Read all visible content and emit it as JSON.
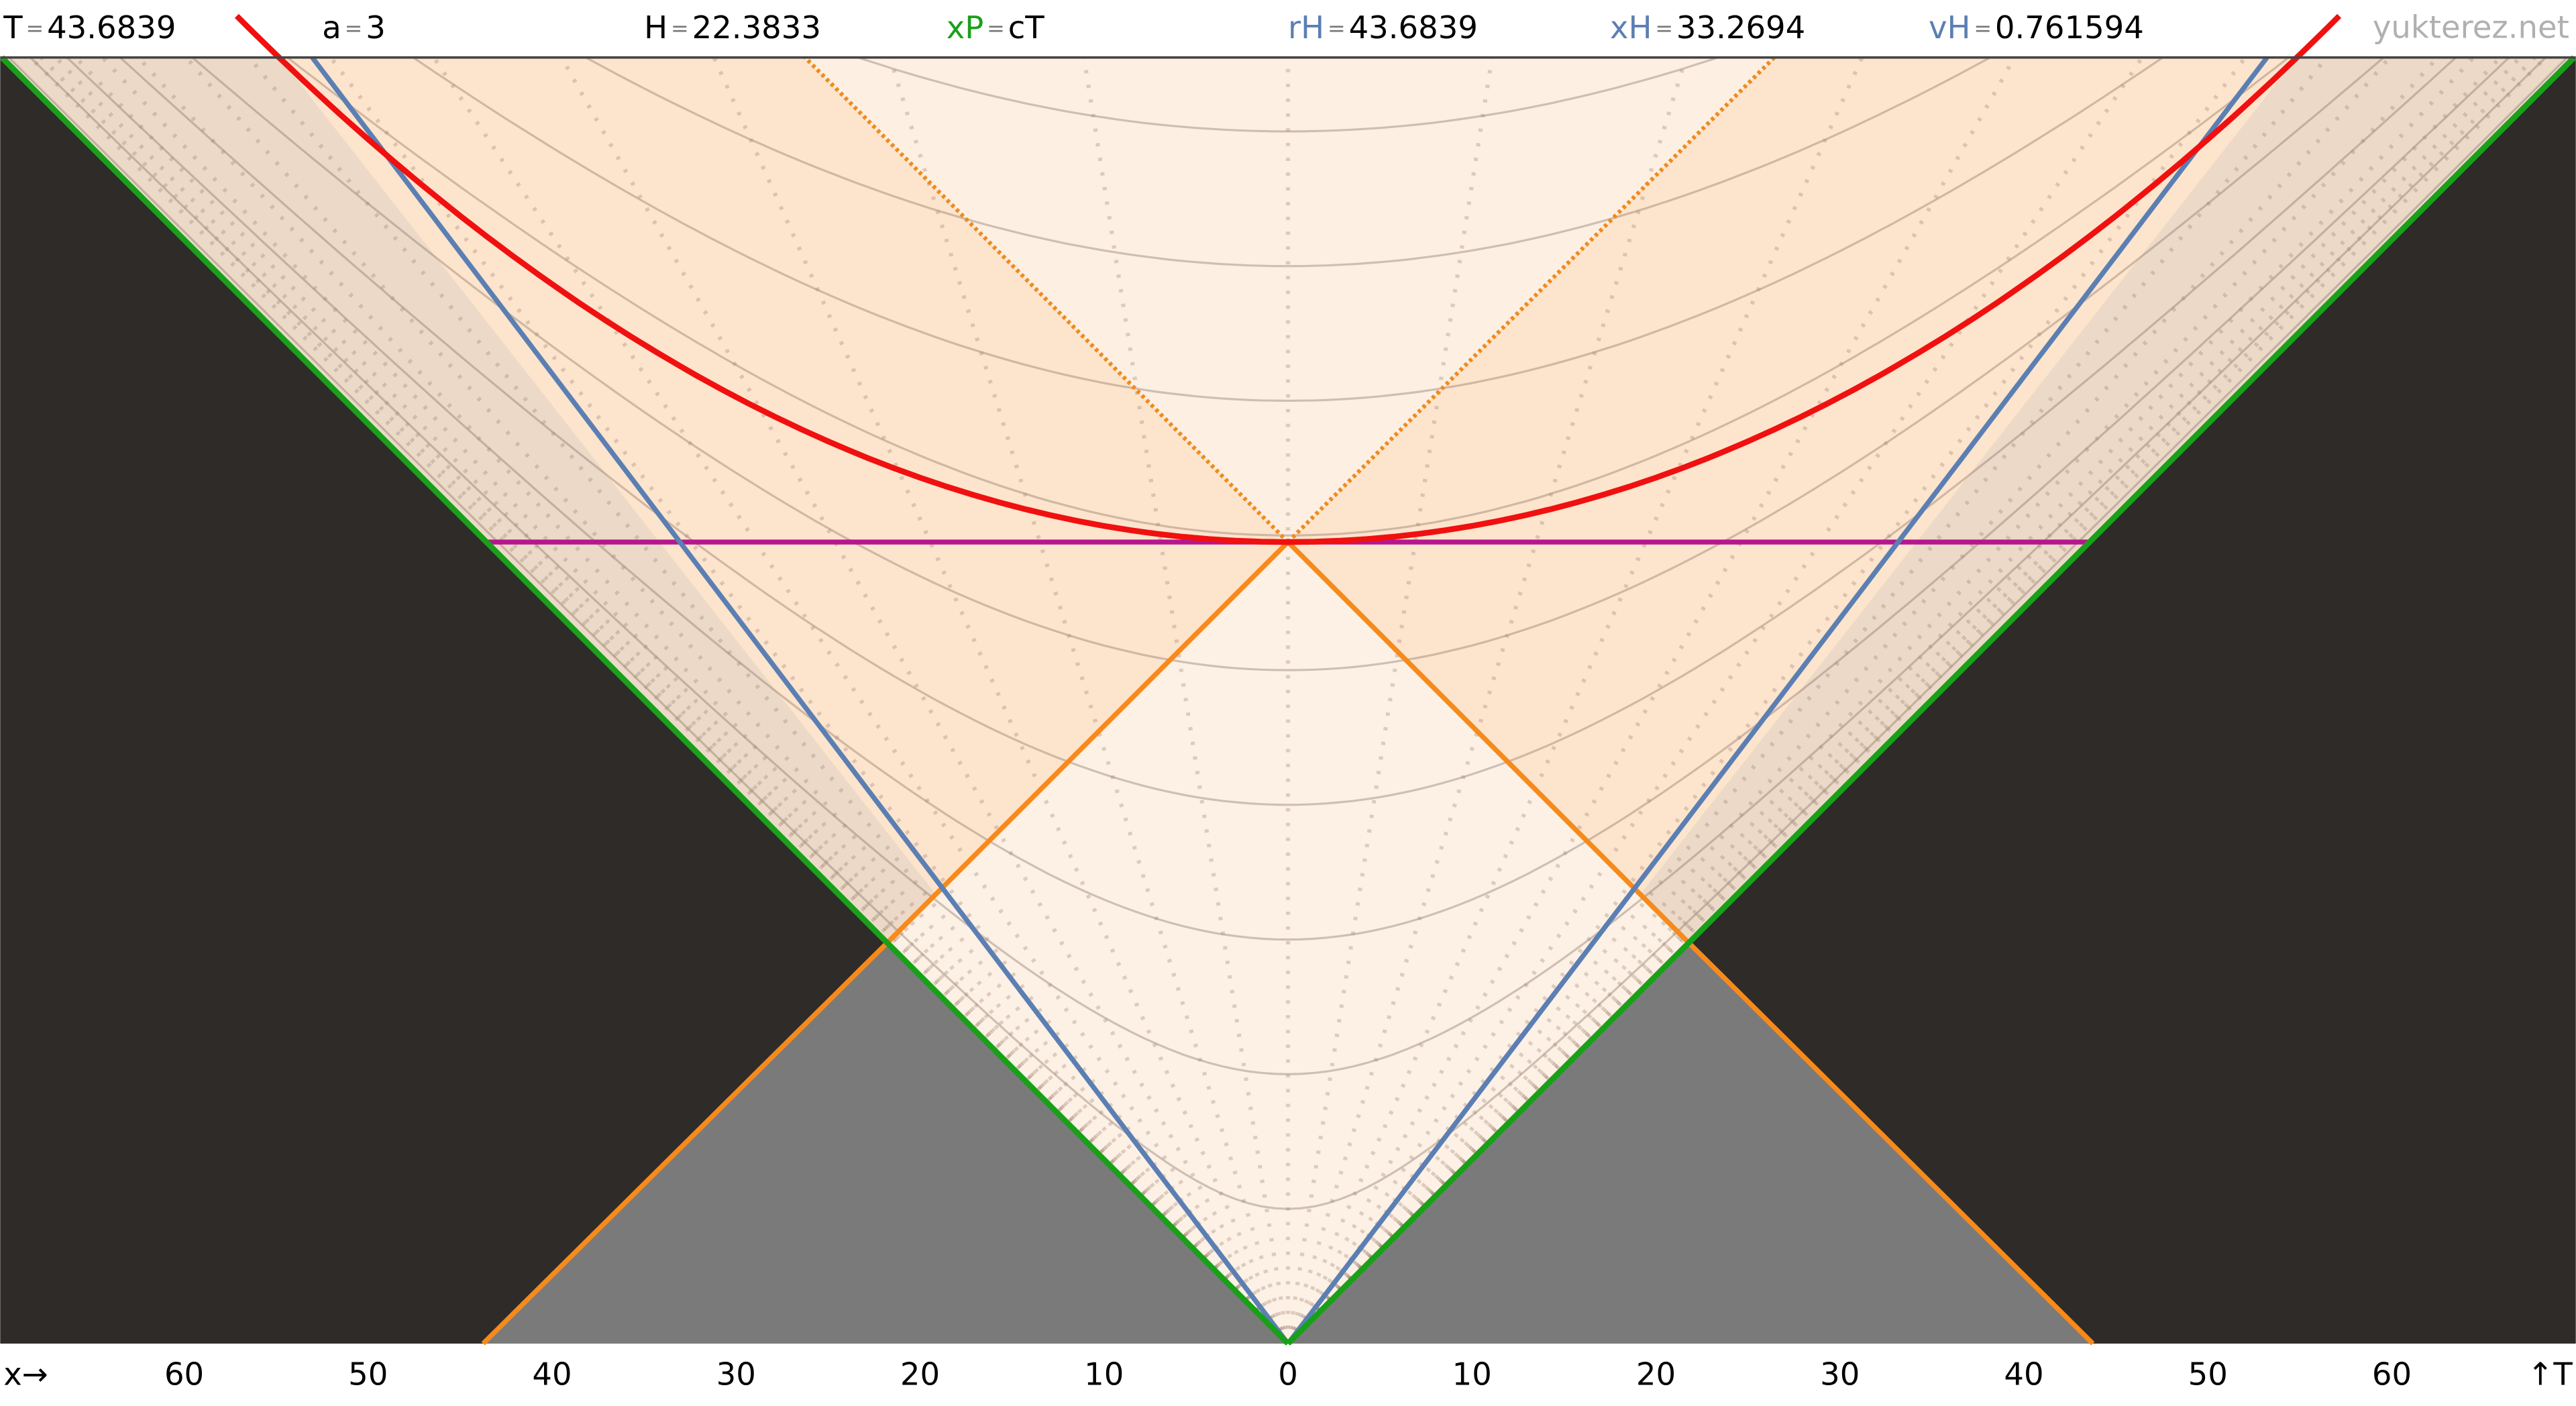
{
  "chart_data": {
    "type": "spacetime",
    "header": [
      {
        "label": "T",
        "value": 43.6839,
        "color": "#000000"
      },
      {
        "label": "a",
        "value": 3,
        "color": "#000000"
      },
      {
        "label": "H",
        "value": 22.3833,
        "color": "#000000"
      },
      {
        "label": "xP",
        "value": "cT",
        "color": "#1aa01a"
      },
      {
        "label": "rH",
        "value": 43.6839,
        "color": "#5b7fb3"
      },
      {
        "label": "xH",
        "value": 33.2694,
        "color": "#5b7fb3"
      },
      {
        "label": "vH",
        "value": 0.761594,
        "color": "#5b7fb3"
      }
    ],
    "header_separator": "=",
    "watermark": "yukterez.net",
    "x_label": "x→",
    "y_label": "↑T",
    "xlim": [
      -70,
      70
    ],
    "xticks": [
      {
        "value": -60,
        "label": "60"
      },
      {
        "value": -50,
        "label": "50"
      },
      {
        "value": -40,
        "label": "40"
      },
      {
        "value": -30,
        "label": "30"
      },
      {
        "value": -20,
        "label": "20"
      },
      {
        "value": -10,
        "label": "10"
      },
      0,
      10,
      20,
      30,
      40,
      50,
      60
    ]
  }
}
